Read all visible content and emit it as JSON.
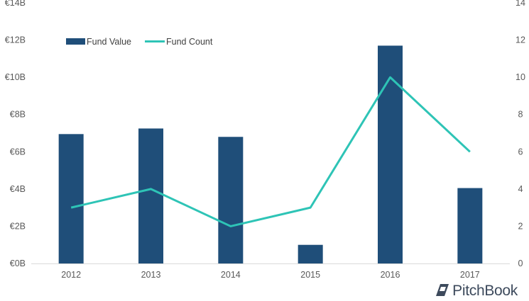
{
  "chart_data": {
    "type": "bar",
    "categories": [
      "2012",
      "2013",
      "2014",
      "2015",
      "2016",
      "2017"
    ],
    "series": [
      {
        "name": "Fund Value",
        "type": "bar",
        "axis": "left",
        "color": "#1f4e79",
        "values": [
          6.95,
          7.25,
          6.8,
          1.0,
          11.7,
          4.05
        ]
      },
      {
        "name": "Fund Count",
        "type": "line",
        "axis": "right",
        "color": "#2ec4b6",
        "values": [
          3,
          4,
          2,
          3,
          10,
          6
        ]
      }
    ],
    "left_axis": {
      "min": 0,
      "max": 14,
      "step": 2,
      "prefix": "€",
      "suffix": "B",
      "ticks": [
        "€0B",
        "€2B",
        "€4B",
        "€6B",
        "€8B",
        "€10B",
        "€12B",
        "€14B"
      ]
    },
    "right_axis": {
      "min": 0,
      "max": 14,
      "step": 2,
      "ticks": [
        "0",
        "2",
        "4",
        "6",
        "8",
        "10",
        "12",
        "14"
      ]
    },
    "legend_position": "top-left",
    "grid": false
  },
  "branding": {
    "logo_text": "PitchBook"
  }
}
